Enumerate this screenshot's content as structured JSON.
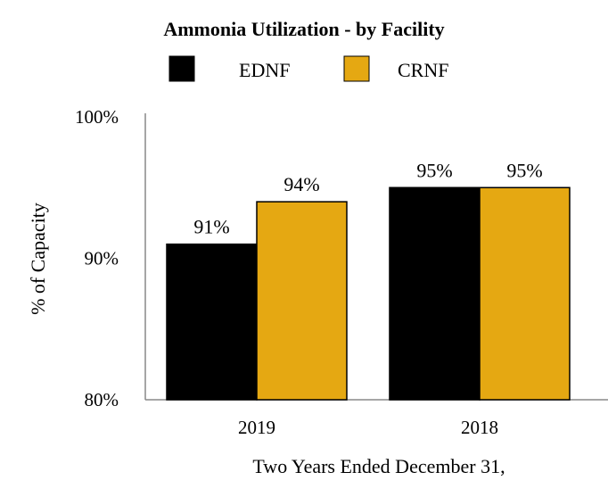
{
  "chart_data": {
    "type": "bar",
    "title": "Ammonia Utilization - by Facility",
    "xlabel": "Two Years Ended December 31,",
    "ylabel": "% of Capacity",
    "categories": [
      "2019",
      "2018"
    ],
    "series": [
      {
        "name": "EDNF",
        "values": [
          91,
          95
        ],
        "labels": [
          "91%",
          "95%"
        ],
        "color": "#000000"
      },
      {
        "name": "CRNF",
        "values": [
          94,
          95
        ],
        "labels": [
          "94%",
          "95%"
        ],
        "color": "#E5A812"
      }
    ],
    "ylim": [
      80,
      100
    ],
    "yticks": [
      80,
      90,
      100
    ],
    "ytick_labels": [
      "80%",
      "90%",
      "100%"
    ],
    "grid": false,
    "legend_position": "top-center"
  }
}
